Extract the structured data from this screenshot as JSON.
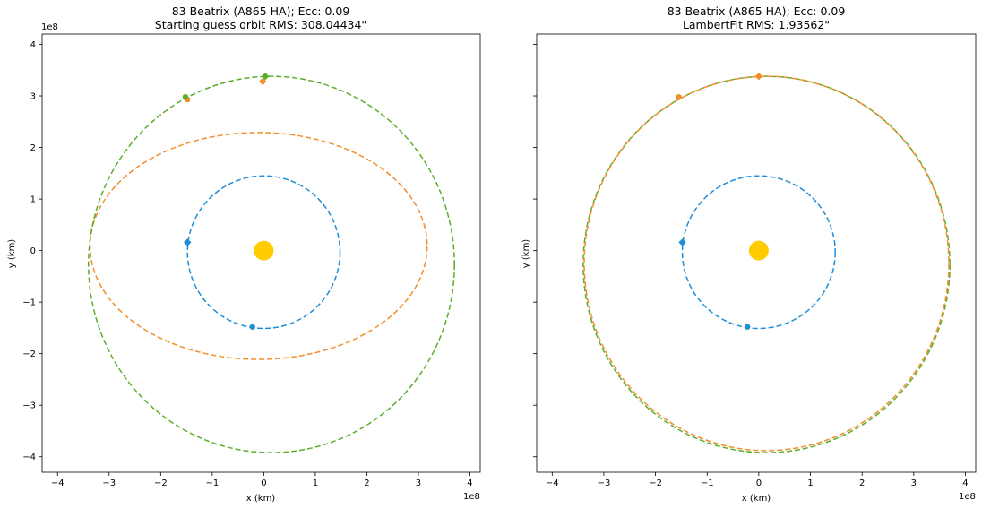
{
  "chart_data": [
    {
      "type": "scatter",
      "title_line1": "83 Beatrix (A865 HA); Ecc: 0.09",
      "title_line2": "Starting guess orbit RMS: 308.04434\"",
      "xlabel": "x (km)",
      "ylabel": "y (km)",
      "xlim": [
        -4.3,
        4.2
      ],
      "ylim": [
        -4.3,
        4.2
      ],
      "axis_multiplier": "1e8",
      "x_ticks": [
        -4,
        -3,
        -2,
        -1,
        0,
        1,
        2,
        3,
        4
      ],
      "y_ticks": [
        -4,
        -3,
        -2,
        -1,
        0,
        1,
        2,
        3,
        4
      ],
      "x_tick_labels": [
        "−4",
        "−3",
        "−2",
        "−1",
        "0",
        "1",
        "2",
        "3",
        "4"
      ],
      "y_tick_labels": [
        "−4",
        "−3",
        "−2",
        "−1",
        "0",
        "1",
        "2",
        "3",
        "4"
      ],
      "grid": false,
      "sun": {
        "x": 0,
        "y": 0,
        "color": "#ffcc00"
      },
      "orbits": [
        {
          "cx": 0.0,
          "cy": -0.03,
          "rx": 1.48,
          "ry": 1.48,
          "color": "#1f8ed6"
        },
        {
          "cx": -0.1,
          "cy": 0.09,
          "rx": 3.27,
          "ry": 2.2,
          "color": "#f28e2b"
        },
        {
          "cx": 0.15,
          "cy": -0.27,
          "rx": 3.55,
          "ry": 3.65,
          "color": "#5aae2b"
        }
      ],
      "markers": [
        {
          "x": -1.48,
          "y": 0.16,
          "shape": "diamond",
          "color": "#1f8ed6"
        },
        {
          "x": -0.22,
          "y": -1.48,
          "shape": "circle",
          "color": "#1f8ed6"
        },
        {
          "x": -0.02,
          "y": 3.28,
          "shape": "diamond",
          "color": "#f28e2b"
        },
        {
          "x": -1.48,
          "y": 2.93,
          "shape": "circle",
          "color": "#f28e2b"
        },
        {
          "x": 0.03,
          "y": 3.38,
          "shape": "diamond",
          "color": "#5aae2b"
        },
        {
          "x": -1.52,
          "y": 2.98,
          "shape": "circle",
          "color": "#5aae2b"
        }
      ]
    },
    {
      "type": "scatter",
      "title_line1": "83 Beatrix (A865 HA); Ecc: 0.09",
      "title_line2": "LambertFit RMS: 1.93562\"",
      "xlabel": "x (km)",
      "ylabel": "y (km)",
      "xlim": [
        -4.3,
        4.2
      ],
      "ylim": [
        -4.3,
        4.2
      ],
      "axis_multiplier": "1e8",
      "x_ticks": [
        -4,
        -3,
        -2,
        -1,
        0,
        1,
        2,
        3,
        4
      ],
      "y_ticks": [
        -4,
        -3,
        -2,
        -1,
        0,
        1,
        2,
        3,
        4
      ],
      "x_tick_labels": [
        "−4",
        "−3",
        "−2",
        "−1",
        "0",
        "1",
        "2",
        "3",
        "4"
      ],
      "y_tick_labels": [],
      "grid": false,
      "sun": {
        "x": 0,
        "y": 0,
        "color": "#ffcc00"
      },
      "orbits": [
        {
          "cx": 0.0,
          "cy": -0.03,
          "rx": 1.48,
          "ry": 1.48,
          "color": "#1f8ed6"
        },
        {
          "cx": 0.15,
          "cy": -0.27,
          "rx": 3.55,
          "ry": 3.65,
          "color": "#5aae2b"
        },
        {
          "cx": 0.15,
          "cy": -0.25,
          "rx": 3.53,
          "ry": 3.63,
          "color": "#f28e2b"
        }
      ],
      "markers": [
        {
          "x": -1.48,
          "y": 0.16,
          "shape": "diamond",
          "color": "#1f8ed6"
        },
        {
          "x": -0.22,
          "y": -1.48,
          "shape": "circle",
          "color": "#1f8ed6"
        },
        {
          "x": 0.0,
          "y": 3.38,
          "shape": "diamond",
          "color": "#f28e2b"
        },
        {
          "x": -1.55,
          "y": 2.98,
          "shape": "circle",
          "color": "#f28e2b"
        }
      ]
    }
  ]
}
